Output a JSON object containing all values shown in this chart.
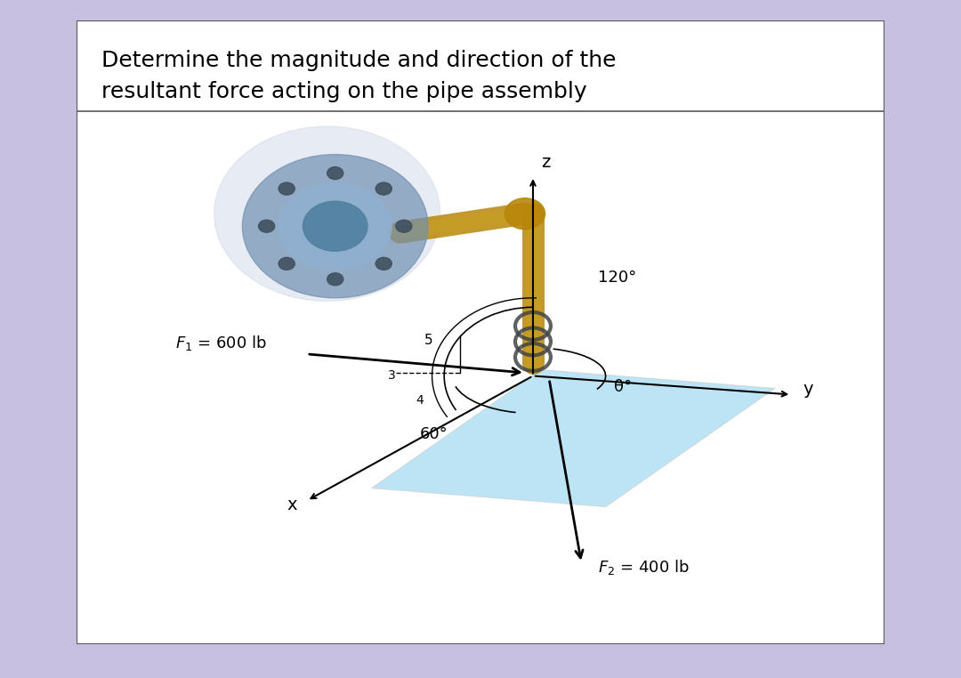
{
  "title_line1": "Determine the magnitude and direction of the",
  "title_line2": "resultant force acting on the pipe assembly",
  "bg_color": "#ffffff",
  "border_color": "#888888",
  "outer_bg": "#c8c0e0",
  "title_fontsize": 18,
  "label_fontsize": 14,
  "annotation_fontsize": 13,
  "F1_label": "$F_1$ = 600 lb",
  "F2_label": "$F_2$ = 400 lb",
  "angle1_label": "120°",
  "angle2_label": "60°",
  "theta_label": "θ°",
  "x_label": "x",
  "y_label": "y",
  "z_label": "z",
  "ratio_label": "3│\n4",
  "num5_label": "5"
}
